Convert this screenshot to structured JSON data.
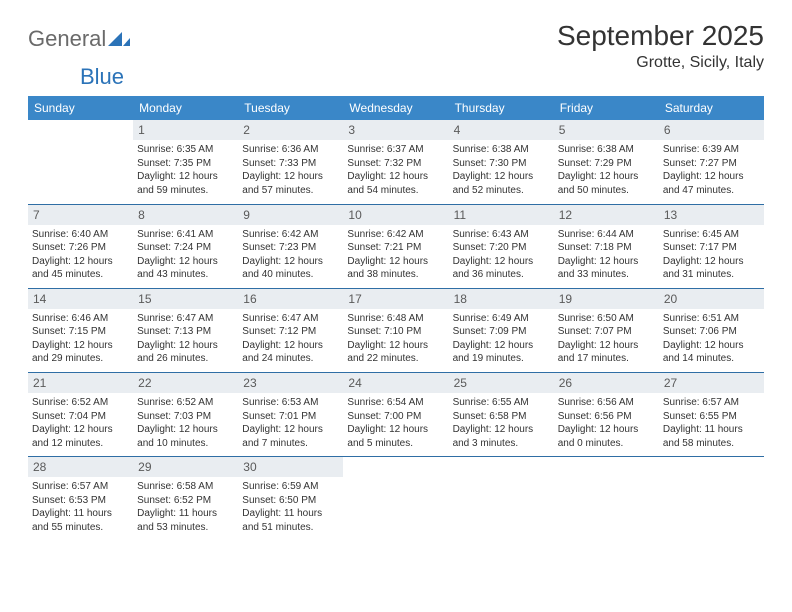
{
  "logo": {
    "text_a": "General",
    "text_b": "Blue"
  },
  "title": "September 2025",
  "location": "Grotte, Sicily, Italy",
  "columns": [
    "Sunday",
    "Monday",
    "Tuesday",
    "Wednesday",
    "Thursday",
    "Friday",
    "Saturday"
  ],
  "colors": {
    "header_bg": "#3a87c8",
    "header_fg": "#ffffff",
    "daynum_bg": "#e9edf1",
    "row_border": "#2f6ea5",
    "text": "#333333",
    "logo_gray": "#6a6a6a",
    "logo_blue": "#2b73b8"
  },
  "weeks": [
    [
      {
        "n": "",
        "lines": []
      },
      {
        "n": "1",
        "lines": [
          "Sunrise: 6:35 AM",
          "Sunset: 7:35 PM",
          "Daylight: 12 hours",
          "and 59 minutes."
        ]
      },
      {
        "n": "2",
        "lines": [
          "Sunrise: 6:36 AM",
          "Sunset: 7:33 PM",
          "Daylight: 12 hours",
          "and 57 minutes."
        ]
      },
      {
        "n": "3",
        "lines": [
          "Sunrise: 6:37 AM",
          "Sunset: 7:32 PM",
          "Daylight: 12 hours",
          "and 54 minutes."
        ]
      },
      {
        "n": "4",
        "lines": [
          "Sunrise: 6:38 AM",
          "Sunset: 7:30 PM",
          "Daylight: 12 hours",
          "and 52 minutes."
        ]
      },
      {
        "n": "5",
        "lines": [
          "Sunrise: 6:38 AM",
          "Sunset: 7:29 PM",
          "Daylight: 12 hours",
          "and 50 minutes."
        ]
      },
      {
        "n": "6",
        "lines": [
          "Sunrise: 6:39 AM",
          "Sunset: 7:27 PM",
          "Daylight: 12 hours",
          "and 47 minutes."
        ]
      }
    ],
    [
      {
        "n": "7",
        "lines": [
          "Sunrise: 6:40 AM",
          "Sunset: 7:26 PM",
          "Daylight: 12 hours",
          "and 45 minutes."
        ]
      },
      {
        "n": "8",
        "lines": [
          "Sunrise: 6:41 AM",
          "Sunset: 7:24 PM",
          "Daylight: 12 hours",
          "and 43 minutes."
        ]
      },
      {
        "n": "9",
        "lines": [
          "Sunrise: 6:42 AM",
          "Sunset: 7:23 PM",
          "Daylight: 12 hours",
          "and 40 minutes."
        ]
      },
      {
        "n": "10",
        "lines": [
          "Sunrise: 6:42 AM",
          "Sunset: 7:21 PM",
          "Daylight: 12 hours",
          "and 38 minutes."
        ]
      },
      {
        "n": "11",
        "lines": [
          "Sunrise: 6:43 AM",
          "Sunset: 7:20 PM",
          "Daylight: 12 hours",
          "and 36 minutes."
        ]
      },
      {
        "n": "12",
        "lines": [
          "Sunrise: 6:44 AM",
          "Sunset: 7:18 PM",
          "Daylight: 12 hours",
          "and 33 minutes."
        ]
      },
      {
        "n": "13",
        "lines": [
          "Sunrise: 6:45 AM",
          "Sunset: 7:17 PM",
          "Daylight: 12 hours",
          "and 31 minutes."
        ]
      }
    ],
    [
      {
        "n": "14",
        "lines": [
          "Sunrise: 6:46 AM",
          "Sunset: 7:15 PM",
          "Daylight: 12 hours",
          "and 29 minutes."
        ]
      },
      {
        "n": "15",
        "lines": [
          "Sunrise: 6:47 AM",
          "Sunset: 7:13 PM",
          "Daylight: 12 hours",
          "and 26 minutes."
        ]
      },
      {
        "n": "16",
        "lines": [
          "Sunrise: 6:47 AM",
          "Sunset: 7:12 PM",
          "Daylight: 12 hours",
          "and 24 minutes."
        ]
      },
      {
        "n": "17",
        "lines": [
          "Sunrise: 6:48 AM",
          "Sunset: 7:10 PM",
          "Daylight: 12 hours",
          "and 22 minutes."
        ]
      },
      {
        "n": "18",
        "lines": [
          "Sunrise: 6:49 AM",
          "Sunset: 7:09 PM",
          "Daylight: 12 hours",
          "and 19 minutes."
        ]
      },
      {
        "n": "19",
        "lines": [
          "Sunrise: 6:50 AM",
          "Sunset: 7:07 PM",
          "Daylight: 12 hours",
          "and 17 minutes."
        ]
      },
      {
        "n": "20",
        "lines": [
          "Sunrise: 6:51 AM",
          "Sunset: 7:06 PM",
          "Daylight: 12 hours",
          "and 14 minutes."
        ]
      }
    ],
    [
      {
        "n": "21",
        "lines": [
          "Sunrise: 6:52 AM",
          "Sunset: 7:04 PM",
          "Daylight: 12 hours",
          "and 12 minutes."
        ]
      },
      {
        "n": "22",
        "lines": [
          "Sunrise: 6:52 AM",
          "Sunset: 7:03 PM",
          "Daylight: 12 hours",
          "and 10 minutes."
        ]
      },
      {
        "n": "23",
        "lines": [
          "Sunrise: 6:53 AM",
          "Sunset: 7:01 PM",
          "Daylight: 12 hours",
          "and 7 minutes."
        ]
      },
      {
        "n": "24",
        "lines": [
          "Sunrise: 6:54 AM",
          "Sunset: 7:00 PM",
          "Daylight: 12 hours",
          "and 5 minutes."
        ]
      },
      {
        "n": "25",
        "lines": [
          "Sunrise: 6:55 AM",
          "Sunset: 6:58 PM",
          "Daylight: 12 hours",
          "and 3 minutes."
        ]
      },
      {
        "n": "26",
        "lines": [
          "Sunrise: 6:56 AM",
          "Sunset: 6:56 PM",
          "Daylight: 12 hours",
          "and 0 minutes."
        ]
      },
      {
        "n": "27",
        "lines": [
          "Sunrise: 6:57 AM",
          "Sunset: 6:55 PM",
          "Daylight: 11 hours",
          "and 58 minutes."
        ]
      }
    ],
    [
      {
        "n": "28",
        "lines": [
          "Sunrise: 6:57 AM",
          "Sunset: 6:53 PM",
          "Daylight: 11 hours",
          "and 55 minutes."
        ]
      },
      {
        "n": "29",
        "lines": [
          "Sunrise: 6:58 AM",
          "Sunset: 6:52 PM",
          "Daylight: 11 hours",
          "and 53 minutes."
        ]
      },
      {
        "n": "30",
        "lines": [
          "Sunrise: 6:59 AM",
          "Sunset: 6:50 PM",
          "Daylight: 11 hours",
          "and 51 minutes."
        ]
      },
      {
        "n": "",
        "lines": []
      },
      {
        "n": "",
        "lines": []
      },
      {
        "n": "",
        "lines": []
      },
      {
        "n": "",
        "lines": []
      }
    ]
  ]
}
